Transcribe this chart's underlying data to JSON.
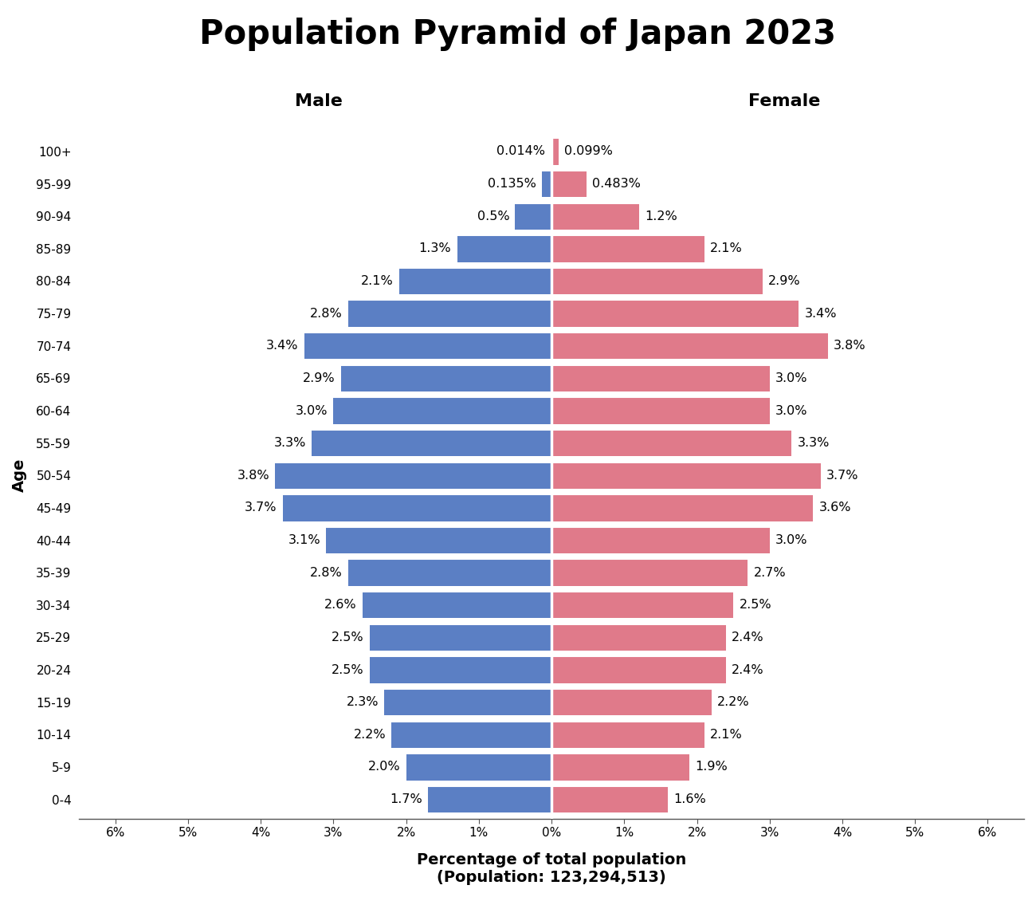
{
  "title": "Population Pyramid of Japan 2023",
  "xlabel_line1": "Percentage of total population",
  "xlabel_line2": "(Population: 123,294,513)",
  "ylabel": "Age",
  "male_label": "Male",
  "female_label": "Female",
  "age_groups": [
    "0-4",
    "5-9",
    "10-14",
    "15-19",
    "20-24",
    "25-29",
    "30-34",
    "35-39",
    "40-44",
    "45-49",
    "50-54",
    "55-59",
    "60-64",
    "65-69",
    "70-74",
    "75-79",
    "80-84",
    "85-89",
    "90-94",
    "95-99",
    "100+"
  ],
  "male_values": [
    1.7,
    2.0,
    2.2,
    2.3,
    2.5,
    2.5,
    2.6,
    2.8,
    3.1,
    3.7,
    3.8,
    3.3,
    3.0,
    2.9,
    3.4,
    2.8,
    2.1,
    1.3,
    0.5,
    0.135,
    0.014
  ],
  "female_values": [
    1.6,
    1.9,
    2.1,
    2.2,
    2.4,
    2.4,
    2.5,
    2.7,
    3.0,
    3.6,
    3.7,
    3.3,
    3.0,
    3.0,
    3.8,
    3.4,
    2.9,
    2.1,
    1.2,
    0.483,
    0.099
  ],
  "male_labels": [
    "1.7%",
    "2.0%",
    "2.2%",
    "2.3%",
    "2.5%",
    "2.5%",
    "2.6%",
    "2.8%",
    "3.1%",
    "3.7%",
    "3.8%",
    "3.3%",
    "3.0%",
    "2.9%",
    "3.4%",
    "2.8%",
    "2.1%",
    "1.3%",
    "0.5%",
    "0.135%",
    "0.014%"
  ],
  "female_labels": [
    "1.6%",
    "1.9%",
    "2.1%",
    "2.2%",
    "2.4%",
    "2.4%",
    "2.5%",
    "2.7%",
    "3.0%",
    "3.6%",
    "3.7%",
    "3.3%",
    "3.0%",
    "3.0%",
    "3.8%",
    "3.4%",
    "2.9%",
    "2.1%",
    "1.2%",
    "0.483%",
    "0.099%"
  ],
  "male_color": "#5b7fc4",
  "female_color": "#e07a8a",
  "background_color": "#ffffff",
  "xlim": 6.5,
  "bar_height": 0.82,
  "title_fontsize": 30,
  "label_fontsize": 11.5,
  "tick_fontsize": 11,
  "axis_label_fontsize": 14,
  "gender_label_fontsize": 16
}
